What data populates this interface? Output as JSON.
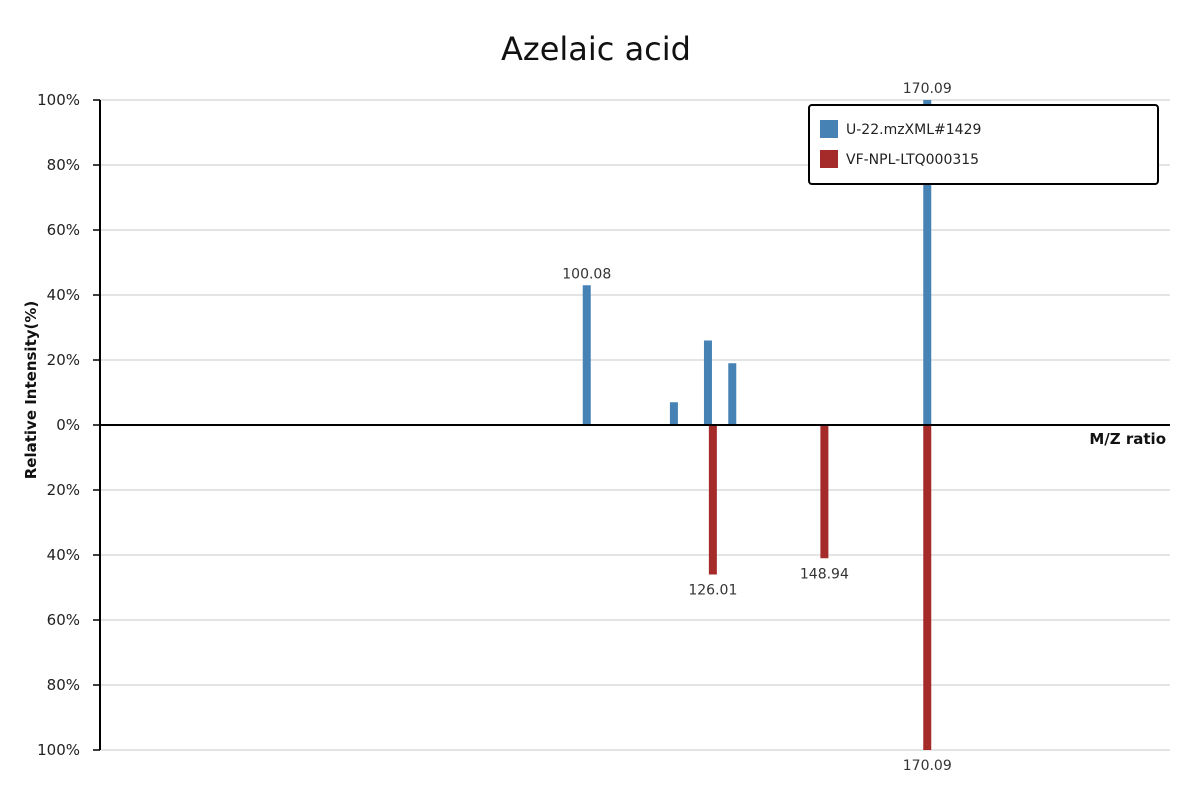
{
  "chart_data": {
    "type": "bar",
    "title": "Azelaic acid",
    "xlabel": "M/Z ratio",
    "ylabel": "Relative Intensity(%)",
    "xlim": [
      0,
      220
    ],
    "ylim": [
      -100,
      100
    ],
    "yticks": [
      "100%",
      "80%",
      "60%",
      "40%",
      "20%",
      "0%",
      "20%",
      "40%",
      "60%",
      "80%",
      "100%"
    ],
    "grid": true,
    "legend_position": "top-right",
    "colors": {
      "top": "#4682b4",
      "bottom": "#a52a2a"
    },
    "series": [
      {
        "name": "U-22.mzXML#1429",
        "direction": "up",
        "peaks": [
          {
            "mz": 100.08,
            "intensity": 43,
            "label": "100.08"
          },
          {
            "mz": 118.0,
            "intensity": 7
          },
          {
            "mz": 125.0,
            "intensity": 26
          },
          {
            "mz": 130.0,
            "intensity": 19
          },
          {
            "mz": 170.09,
            "intensity": 100,
            "label": "170.09"
          }
        ]
      },
      {
        "name": "VF-NPL-LTQ000315",
        "direction": "down",
        "peaks": [
          {
            "mz": 126.01,
            "intensity": 46,
            "label": "126.01"
          },
          {
            "mz": 148.94,
            "intensity": 41,
            "label": "148.94"
          },
          {
            "mz": 170.09,
            "intensity": 100,
            "label": "170.09"
          }
        ]
      }
    ]
  }
}
